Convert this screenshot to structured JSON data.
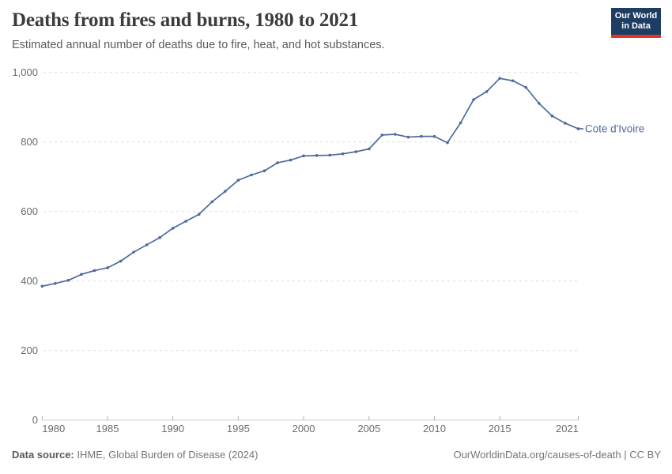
{
  "header": {
    "title": "Deaths from fires and burns, 1980 to 2021",
    "subtitle": "Estimated annual number of deaths due to fire, heat, and hot substances.",
    "logo_line1": "Our World",
    "logo_line2": "in Data",
    "logo_bg_color": "#1d3d63",
    "logo_stripe_color": "#e0362a"
  },
  "chart_data": {
    "type": "line",
    "title": "Deaths from fires and burns, 1980 to 2021",
    "xlabel": "",
    "ylabel": "",
    "xlim": [
      1980,
      2021
    ],
    "ylim": [
      0,
      1000
    ],
    "grid": "horizontal-dashed",
    "legend_position": "end-of-line-label",
    "x_ticks": [
      1980,
      1985,
      1990,
      1995,
      2000,
      2005,
      2010,
      2015,
      2021
    ],
    "y_ticks": [
      0,
      200,
      400,
      600,
      800,
      1000
    ],
    "y_tick_labels": [
      "0",
      "200",
      "400",
      "600",
      "800",
      "1,000"
    ],
    "x": [
      1980,
      1981,
      1982,
      1983,
      1984,
      1985,
      1986,
      1987,
      1988,
      1989,
      1990,
      1991,
      1992,
      1993,
      1994,
      1995,
      1996,
      1997,
      1998,
      1999,
      2000,
      2001,
      2002,
      2003,
      2004,
      2005,
      2006,
      2007,
      2008,
      2009,
      2010,
      2011,
      2012,
      2013,
      2014,
      2015,
      2016,
      2017,
      2018,
      2019,
      2020,
      2021
    ],
    "series": [
      {
        "name": "Cote d'Ivoire",
        "color": "#4c6a9c",
        "values": [
          385,
          393,
          402,
          419,
          430,
          438,
          457,
          483,
          504,
          525,
          552,
          572,
          592,
          628,
          658,
          690,
          705,
          717,
          740,
          748,
          760,
          761,
          762,
          766,
          772,
          780,
          820,
          822,
          814,
          816,
          816,
          798,
          855,
          922,
          945,
          983,
          976,
          957,
          911,
          875,
          854,
          838
        ]
      }
    ],
    "axis_color": "#c8c8c8",
    "tick_color": "#adadad",
    "grid_color": "#dcdcdc",
    "tick_label_color": "#6b6b6b"
  },
  "footer": {
    "source_label": "Data source:",
    "source_text": " IHME, Global Burden of Disease (2024)",
    "url_text": "OurWorldinData.org/causes-of-death",
    "separator": " | ",
    "license_text": "CC BY"
  }
}
